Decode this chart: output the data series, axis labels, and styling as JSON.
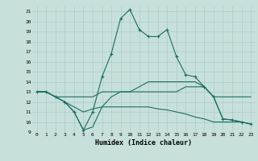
{
  "xlabel": "Humidex (Indice chaleur)",
  "bg_color": "#c8e0dc",
  "grid_color": "#a8ccc8",
  "line_color": "#1a6e60",
  "xlim": [
    -0.5,
    23.5
  ],
  "ylim": [
    9,
    21.5
  ],
  "xticks": [
    0,
    1,
    2,
    3,
    4,
    5,
    6,
    7,
    8,
    9,
    10,
    11,
    12,
    13,
    14,
    15,
    16,
    17,
    18,
    19,
    20,
    21,
    22,
    23
  ],
  "yticks": [
    9,
    10,
    11,
    12,
    13,
    14,
    15,
    16,
    17,
    18,
    19,
    20,
    21
  ],
  "series": [
    {
      "x": [
        0,
        1,
        2,
        3,
        4,
        5,
        6,
        7,
        8,
        9,
        10,
        11,
        12,
        13,
        14,
        15,
        16,
        17,
        18,
        19,
        20,
        21,
        22,
        23
      ],
      "y": [
        13,
        13,
        12.5,
        12,
        11,
        9.2,
        11,
        14.5,
        16.8,
        20.3,
        21.2,
        19.2,
        18.5,
        18.5,
        19.2,
        16.5,
        14.7,
        14.5,
        13.5,
        12.5,
        10.3,
        10.2,
        10,
        9.8
      ],
      "marker": true
    },
    {
      "x": [
        0,
        1,
        2,
        3,
        4,
        5,
        6,
        7,
        8,
        9,
        10,
        11,
        12,
        13,
        14,
        15,
        16,
        17,
        18,
        19,
        20,
        21,
        22,
        23
      ],
      "y": [
        13,
        13,
        12.5,
        12.5,
        12.5,
        12.5,
        12.5,
        13,
        13,
        13,
        13,
        13,
        13,
        13,
        13,
        13,
        13.5,
        13.5,
        13.5,
        12.5,
        12.5,
        12.5,
        12.5,
        12.5
      ],
      "marker": false
    },
    {
      "x": [
        0,
        1,
        2,
        3,
        4,
        5,
        6,
        7,
        8,
        9,
        10,
        11,
        12,
        13,
        14,
        15,
        16,
        17,
        18,
        19,
        20,
        21,
        22,
        23
      ],
      "y": [
        13,
        13,
        12.5,
        12,
        11.5,
        11,
        11.3,
        11.5,
        11.5,
        11.5,
        11.5,
        11.5,
        11.5,
        11.3,
        11.2,
        11,
        10.8,
        10.5,
        10.3,
        10,
        10,
        10,
        10,
        9.8
      ],
      "marker": false
    },
    {
      "x": [
        0,
        1,
        2,
        3,
        4,
        5,
        6,
        7,
        8,
        9,
        10,
        11,
        12,
        13,
        14,
        15,
        16,
        17,
        18,
        19,
        20,
        21,
        22,
        23
      ],
      "y": [
        13,
        13,
        12.5,
        12,
        11,
        9.2,
        9.5,
        11.5,
        12.5,
        13,
        13,
        13.5,
        14,
        14,
        14,
        14,
        14,
        14,
        13.5,
        12.5,
        10.3,
        10.2,
        10,
        9.8
      ],
      "marker": false
    }
  ]
}
